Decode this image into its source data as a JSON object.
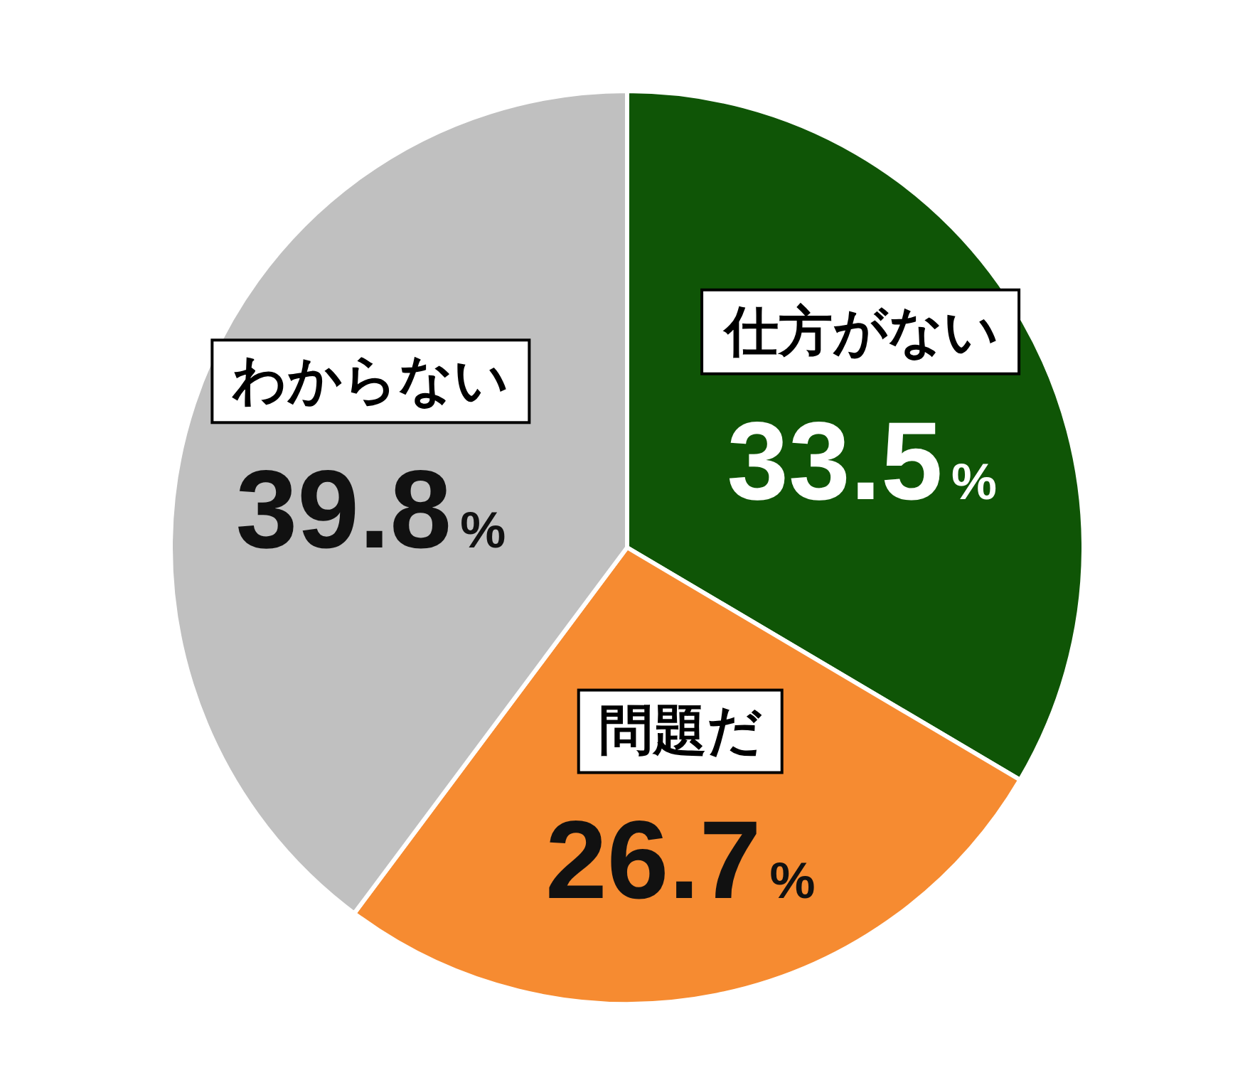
{
  "chart_data": {
    "type": "pie",
    "categories": [
      "仕方がない",
      "問題だ",
      "わからない"
    ],
    "values": [
      33.5,
      26.7,
      39.8
    ],
    "colors": [
      "#0f5506",
      "#f68b31",
      "#c0c0c0"
    ],
    "value_labels": [
      "33.5%",
      "26.7%",
      "39.8%"
    ]
  }
}
